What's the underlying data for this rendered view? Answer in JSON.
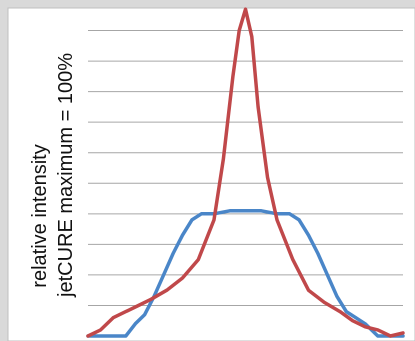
{
  "chart_data": {
    "type": "line",
    "title": "",
    "xlabel": "",
    "ylabel_lines": [
      "relative intensity",
      "jetCURE maximum = 100%"
    ],
    "ylim": [
      0,
      110
    ],
    "yticks": [
      0,
      10,
      20,
      30,
      40,
      50,
      60,
      70,
      80,
      90,
      100,
      110
    ],
    "xlim": [
      0,
      100
    ],
    "grid": "horizontal",
    "legend": "none",
    "series": [
      {
        "color": "#4a86c8",
        "x": [
          0,
          4,
          8,
          12,
          15,
          18,
          21,
          24,
          27,
          30,
          33,
          36,
          40,
          45,
          50,
          55,
          60,
          64,
          67,
          70,
          73,
          76,
          79,
          82,
          85,
          88,
          92,
          96,
          100
        ],
        "y": [
          0,
          0,
          0,
          0,
          4,
          7,
          13,
          20,
          27,
          33,
          38,
          40,
          40,
          41,
          41,
          41,
          40,
          40,
          38,
          33,
          27,
          20,
          13,
          8,
          6,
          4,
          0,
          0,
          0
        ]
      },
      {
        "color": "#c0484a",
        "x": [
          0,
          4,
          8,
          12,
          16,
          20,
          25,
          30,
          35,
          40,
          43,
          46,
          48,
          50,
          52,
          54,
          57,
          60,
          65,
          70,
          75,
          80,
          84,
          88,
          92,
          96,
          100
        ],
        "y": [
          0,
          2,
          6,
          8,
          10,
          12,
          15,
          19,
          25,
          38,
          58,
          85,
          100,
          107,
          98,
          75,
          52,
          38,
          25,
          15,
          11,
          8,
          5,
          3,
          2,
          0,
          1
        ]
      }
    ]
  }
}
